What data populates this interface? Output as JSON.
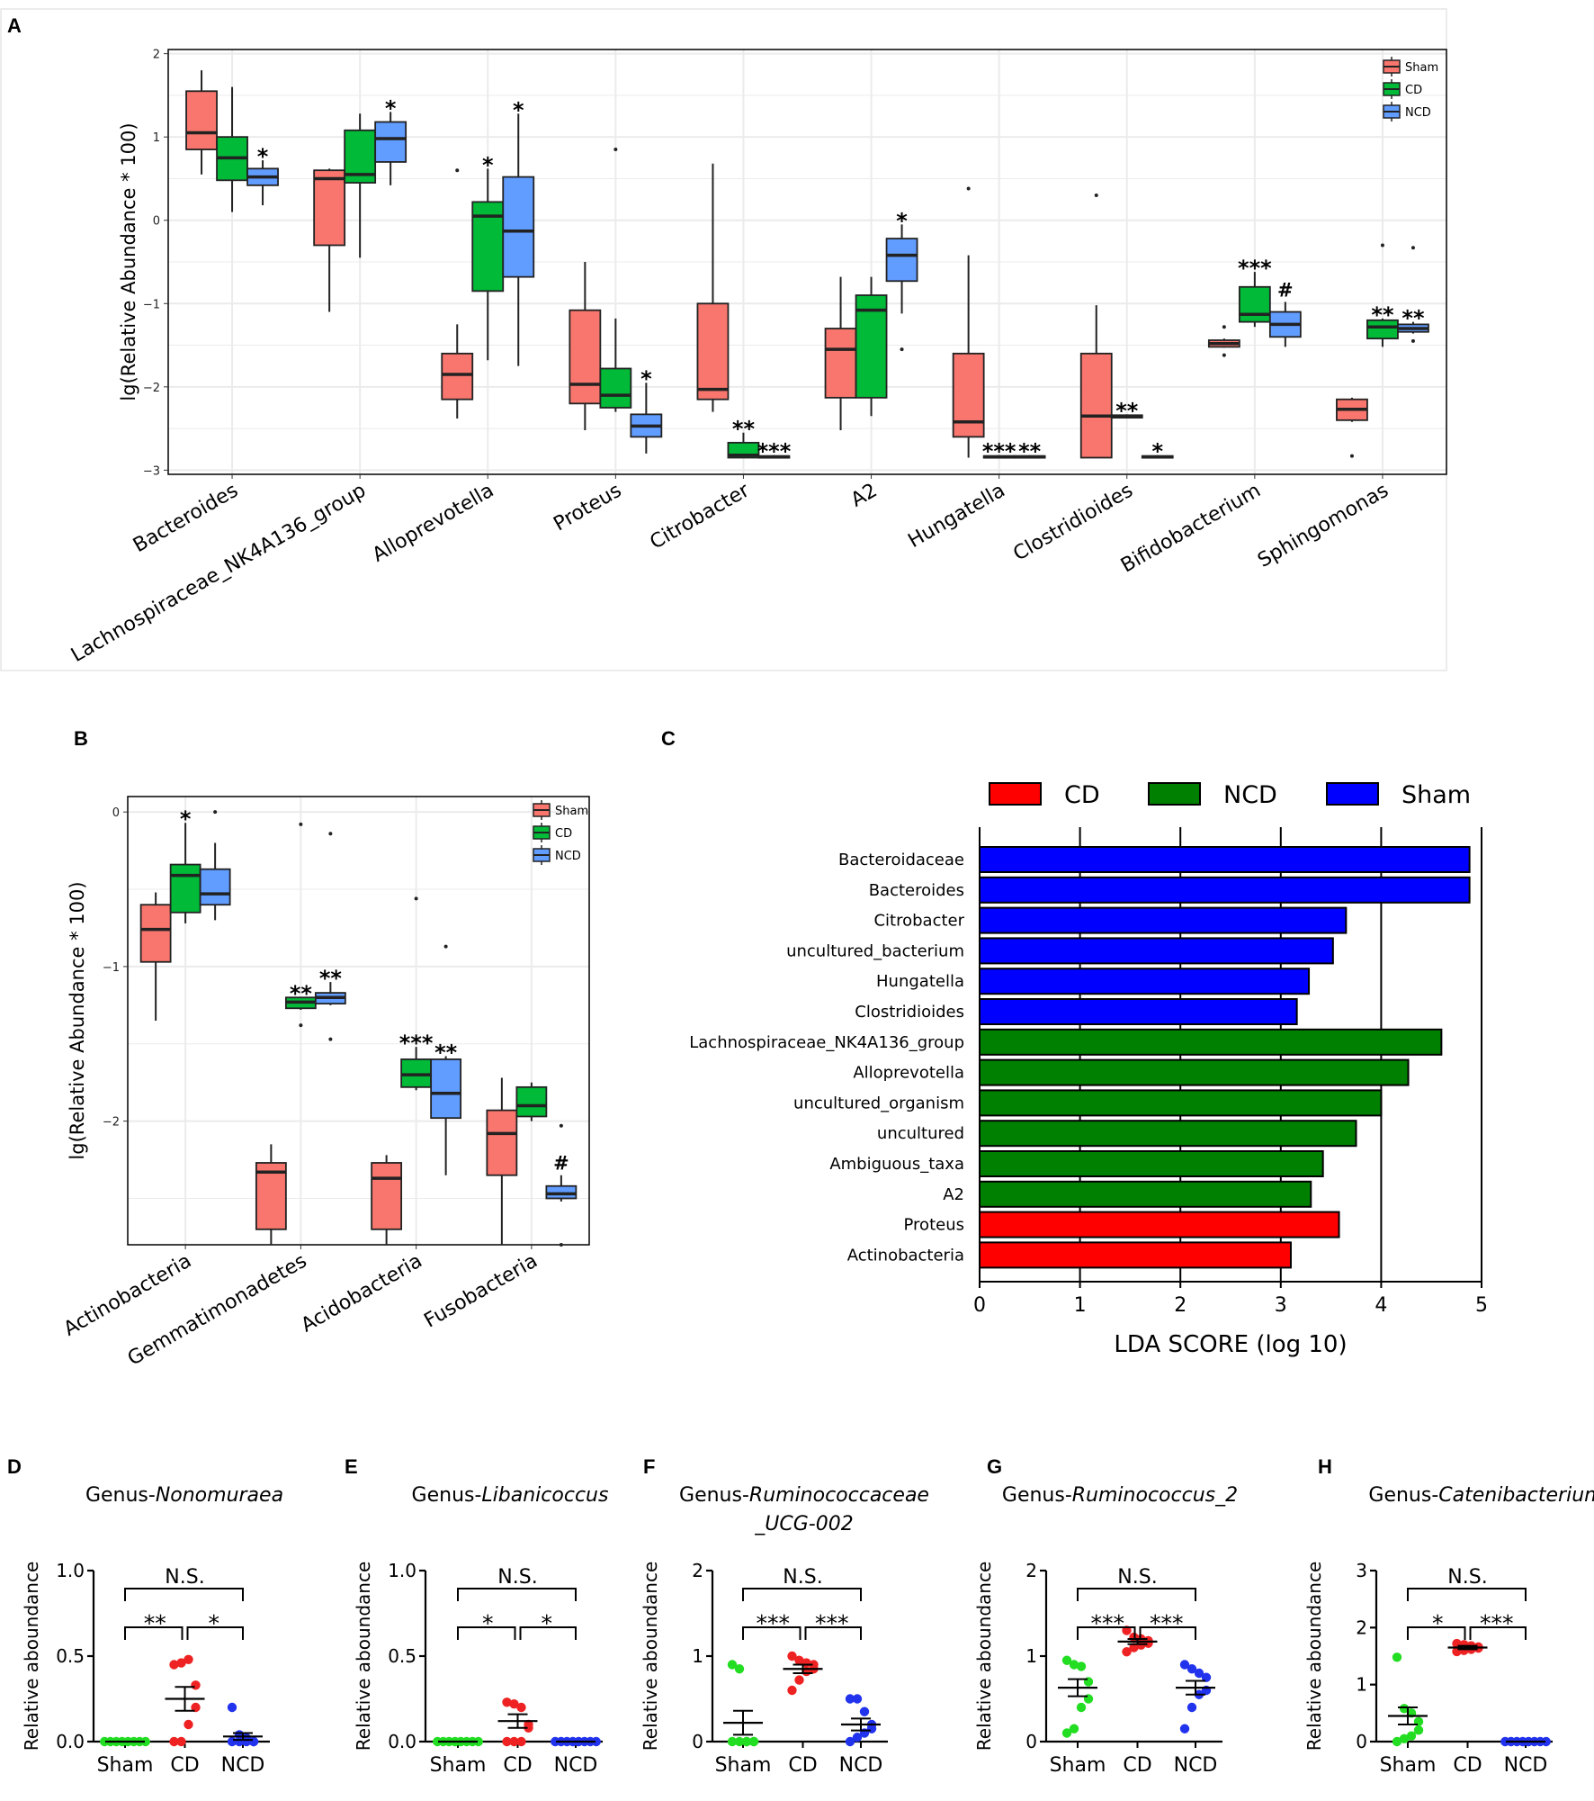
{
  "panels": {
    "A": {
      "label": "A"
    },
    "B": {
      "label": "B"
    },
    "C": {
      "label": "C"
    },
    "D": {
      "label": "D",
      "title_prefix": "Genus-",
      "title_italic": "Nonomuraea"
    },
    "E": {
      "label": "E",
      "title_prefix": "Genus-",
      "title_italic": "Libanicoccus"
    },
    "F": {
      "label": "F",
      "title_prefix": "Genus-",
      "title_italic": "Ruminococcaceae",
      "title_line2": "_UCG-002"
    },
    "G": {
      "label": "G",
      "title_prefix": "Genus-",
      "title_italic": "Ruminococcus_2"
    },
    "H": {
      "label": "H",
      "title_prefix": "Genus-",
      "title_italic": "Catenibacterium"
    }
  },
  "colors": {
    "sham": "#F8766D",
    "cd": "#00BA38",
    "ncd": "#619CFF",
    "lda_cd": "#FF0000",
    "lda_ncd": "#008000",
    "lda_sham": "#0000FF",
    "dot_sham": "#22DD22",
    "dot_cd": "#EE2222",
    "dot_ncd": "#2233EE"
  },
  "chart_data": [
    {
      "id": "A",
      "type": "boxplot",
      "ylabel": "lg(Relative Abundance * 100)",
      "ylim": [
        -3.05,
        2.05
      ],
      "yticks": [
        "2",
        "1",
        "0",
        "−1",
        "−2",
        "−3"
      ],
      "legend": [
        "Sham",
        "CD",
        "NCD"
      ],
      "groups": [
        {
          "name": "Bacteroides",
          "boxes": [
            {
              "q1": 0.85,
              "med": 1.05,
              "q3": 1.55,
              "lo": 0.55,
              "hi": 1.8,
              "out": []
            },
            {
              "q1": 0.48,
              "med": 0.75,
              "q3": 1.0,
              "lo": 0.1,
              "hi": 1.6,
              "out": []
            },
            {
              "q1": 0.42,
              "med": 0.52,
              "q3": 0.62,
              "lo": 0.18,
              "hi": 0.72,
              "out": []
            }
          ],
          "sig": [
            "",
            "",
            "*"
          ]
        },
        {
          "name": "Lachnospiraceae_NK4A136_group",
          "boxes": [
            {
              "q1": -0.3,
              "med": 0.5,
              "q3": 0.6,
              "lo": -1.1,
              "hi": 0.62,
              "out": []
            },
            {
              "q1": 0.45,
              "med": 0.55,
              "q3": 1.08,
              "lo": -0.45,
              "hi": 1.28,
              "out": []
            },
            {
              "q1": 0.7,
              "med": 0.98,
              "q3": 1.18,
              "lo": 0.42,
              "hi": 1.3,
              "out": []
            }
          ],
          "sig": [
            "",
            "",
            "*"
          ]
        },
        {
          "name": "Alloprevotella",
          "boxes": [
            {
              "q1": -2.15,
              "med": -1.85,
              "q3": -1.6,
              "lo": -2.38,
              "hi": -1.25,
              "out": [
                0.6
              ]
            },
            {
              "q1": -0.85,
              "med": 0.05,
              "q3": 0.22,
              "lo": -1.68,
              "hi": 0.62,
              "out": []
            },
            {
              "q1": -0.68,
              "med": -0.13,
              "q3": 0.52,
              "lo": -1.75,
              "hi": 1.28,
              "out": []
            }
          ],
          "sig": [
            "",
            "*",
            "*"
          ]
        },
        {
          "name": "Proteus",
          "boxes": [
            {
              "q1": -2.2,
              "med": -1.97,
              "q3": -1.08,
              "lo": -2.52,
              "hi": -0.5,
              "out": []
            },
            {
              "q1": -2.25,
              "med": -2.1,
              "q3": -1.78,
              "lo": -2.3,
              "hi": -1.18,
              "out": [
                0.85
              ]
            },
            {
              "q1": -2.6,
              "med": -2.47,
              "q3": -2.33,
              "lo": -2.8,
              "hi": -1.95,
              "out": []
            }
          ],
          "sig": [
            "",
            "",
            "*"
          ]
        },
        {
          "name": "Citrobacter",
          "boxes": [
            {
              "q1": -2.15,
              "med": -2.03,
              "q3": -1.0,
              "lo": -2.3,
              "hi": 0.68,
              "out": []
            },
            {
              "q1": -2.85,
              "med": -2.82,
              "q3": -2.67,
              "lo": -2.85,
              "hi": -2.55,
              "out": []
            },
            {
              "q1": -2.85,
              "med": -2.84,
              "q3": -2.83,
              "lo": -2.85,
              "hi": -2.82,
              "out": []
            }
          ],
          "sig": [
            "",
            "**",
            "***"
          ]
        },
        {
          "name": "A2",
          "boxes": [
            {
              "q1": -2.13,
              "med": -1.55,
              "q3": -1.3,
              "lo": -2.52,
              "hi": -0.68,
              "out": []
            },
            {
              "q1": -2.13,
              "med": -1.08,
              "q3": -0.9,
              "lo": -2.35,
              "hi": -0.68,
              "out": []
            },
            {
              "q1": -0.73,
              "med": -0.42,
              "q3": -0.22,
              "lo": -1.12,
              "hi": -0.05,
              "out": [
                -1.55
              ]
            }
          ],
          "sig": [
            "",
            "",
            "*"
          ]
        },
        {
          "name": "Hungatella",
          "boxes": [
            {
              "q1": -2.6,
              "med": -2.42,
              "q3": -1.6,
              "lo": -2.85,
              "hi": -0.42,
              "out": [
                0.38
              ]
            },
            {
              "q1": -2.85,
              "med": -2.84,
              "q3": -2.83,
              "lo": -2.85,
              "hi": -2.82,
              "out": []
            },
            {
              "q1": -2.85,
              "med": -2.84,
              "q3": -2.83,
              "lo": -2.85,
              "hi": -2.82,
              "out": []
            }
          ],
          "sig": [
            "",
            "***",
            "**"
          ]
        },
        {
          "name": "Clostridioides",
          "boxes": [
            {
              "q1": -2.85,
              "med": -2.35,
              "q3": -1.6,
              "lo": -2.85,
              "hi": -1.02,
              "out": [
                0.3
              ]
            },
            {
              "q1": -2.37,
              "med": -2.36,
              "q3": -2.34,
              "lo": -2.37,
              "hi": -2.33,
              "out": []
            },
            {
              "q1": -2.85,
              "med": -2.84,
              "q3": -2.83,
              "lo": -2.85,
              "hi": -2.82,
              "out": []
            }
          ],
          "sig": [
            "",
            "**",
            "*"
          ]
        },
        {
          "name": "Bifidobacterium",
          "boxes": [
            {
              "q1": -1.52,
              "med": -1.48,
              "q3": -1.44,
              "lo": -1.53,
              "hi": -1.42,
              "out": [
                -1.28,
                -1.62
              ]
            },
            {
              "q1": -1.22,
              "med": -1.13,
              "q3": -0.8,
              "lo": -1.28,
              "hi": -0.62,
              "out": []
            },
            {
              "q1": -1.4,
              "med": -1.25,
              "q3": -1.1,
              "lo": -1.52,
              "hi": -0.98,
              "out": []
            }
          ],
          "sig": [
            "",
            "***",
            "#"
          ]
        },
        {
          "name": "Sphingomonas",
          "boxes": [
            {
              "q1": -2.4,
              "med": -2.27,
              "q3": -2.15,
              "lo": -2.42,
              "hi": -2.13,
              "out": [
                -2.83
              ]
            },
            {
              "q1": -1.42,
              "med": -1.28,
              "q3": -1.2,
              "lo": -1.52,
              "hi": -1.18,
              "out": [
                -0.3
              ]
            },
            {
              "q1": -1.34,
              "med": -1.3,
              "q3": -1.25,
              "lo": -1.36,
              "hi": -1.22,
              "out": [
                -0.33,
                -1.45
              ]
            }
          ],
          "sig": [
            "",
            "**",
            "**"
          ]
        }
      ]
    },
    {
      "id": "B",
      "type": "boxplot",
      "ylabel": "lg(Relative Abundance * 100)",
      "ylim": [
        -2.8,
        0.1
      ],
      "yticks": [
        "0",
        "−1",
        "−2"
      ],
      "legend": [
        "Sham",
        "CD",
        "NCD"
      ],
      "groups": [
        {
          "name": "Actinobacteria",
          "boxes": [
            {
              "q1": -0.97,
              "med": -0.76,
              "q3": -0.6,
              "lo": -1.35,
              "hi": -0.52,
              "out": []
            },
            {
              "q1": -0.65,
              "med": -0.41,
              "q3": -0.34,
              "lo": -0.72,
              "hi": -0.07,
              "out": []
            },
            {
              "q1": -0.6,
              "med": -0.53,
              "q3": -0.37,
              "lo": -0.7,
              "hi": -0.2,
              "out": [
                0.0
              ]
            }
          ],
          "sig": [
            "",
            "*",
            ""
          ]
        },
        {
          "name": "Gemmatimonadetes",
          "boxes": [
            {
              "q1": -2.7,
              "med": -2.33,
              "q3": -2.27,
              "lo": -2.8,
              "hi": -2.15,
              "out": []
            },
            {
              "q1": -1.27,
              "med": -1.23,
              "q3": -1.2,
              "lo": -1.28,
              "hi": -1.2,
              "out": [
                -0.08,
                -1.38
              ]
            },
            {
              "q1": -1.24,
              "med": -1.2,
              "q3": -1.17,
              "lo": -1.25,
              "hi": -1.1,
              "out": [
                -0.14,
                -1.47
              ]
            }
          ],
          "sig": [
            "",
            "**",
            "**"
          ]
        },
        {
          "name": "Acidobacteria",
          "boxes": [
            {
              "q1": -2.7,
              "med": -2.37,
              "q3": -2.27,
              "lo": -2.8,
              "hi": -2.22,
              "out": []
            },
            {
              "q1": -1.78,
              "med": -1.7,
              "q3": -1.6,
              "lo": -1.8,
              "hi": -1.52,
              "out": [
                -0.56
              ]
            },
            {
              "q1": -1.98,
              "med": -1.82,
              "q3": -1.6,
              "lo": -2.35,
              "hi": -1.58,
              "out": [
                -0.87
              ]
            }
          ],
          "sig": [
            "",
            "***",
            "**"
          ]
        },
        {
          "name": "Fusobacteria",
          "boxes": [
            {
              "q1": -2.35,
              "med": -2.08,
              "q3": -1.93,
              "lo": -2.8,
              "hi": -1.72,
              "out": []
            },
            {
              "q1": -1.97,
              "med": -1.9,
              "q3": -1.78,
              "lo": -2.0,
              "hi": -1.75,
              "out": []
            },
            {
              "q1": -2.5,
              "med": -2.47,
              "q3": -2.42,
              "lo": -2.52,
              "hi": -2.35,
              "out": [
                -2.03,
                -2.8
              ]
            }
          ],
          "sig": [
            "",
            "",
            "#"
          ]
        }
      ]
    },
    {
      "id": "C",
      "type": "bar",
      "orientation": "horizontal",
      "xlabel": "LDA SCORE (log 10)",
      "xlim": [
        0,
        5
      ],
      "xticks": [
        "0",
        "1",
        "2",
        "3",
        "4",
        "5"
      ],
      "legend": [
        "CD",
        "NCD",
        "Sham"
      ],
      "bars": [
        {
          "name": "Bacteroidaceae",
          "value": 4.88,
          "group": "Sham"
        },
        {
          "name": "Bacteroides",
          "value": 4.88,
          "group": "Sham"
        },
        {
          "name": "Citrobacter",
          "value": 3.65,
          "group": "Sham"
        },
        {
          "name": "uncultured_bacterium",
          "value": 3.52,
          "group": "Sham"
        },
        {
          "name": "Hungatella",
          "value": 3.28,
          "group": "Sham"
        },
        {
          "name": "Clostridioides",
          "value": 3.16,
          "group": "Sham"
        },
        {
          "name": "Lachnospiraceae_NK4A136_group",
          "value": 4.6,
          "group": "NCD"
        },
        {
          "name": "Alloprevotella",
          "value": 4.27,
          "group": "NCD"
        },
        {
          "name": "uncultured_organism",
          "value": 4.0,
          "group": "NCD"
        },
        {
          "name": "uncultured",
          "value": 3.75,
          "group": "NCD"
        },
        {
          "name": "Ambiguous_taxa",
          "value": 3.42,
          "group": "NCD"
        },
        {
          "name": "A2",
          "value": 3.3,
          "group": "NCD"
        },
        {
          "name": "Proteus",
          "value": 3.58,
          "group": "CD"
        },
        {
          "name": "Actinobacteria",
          "value": 3.1,
          "group": "CD"
        }
      ]
    },
    {
      "id": "D",
      "type": "scatter",
      "ylabel": "Relative aboundance",
      "ylim": [
        0,
        1.0
      ],
      "yticks": [
        {
          "v": 0,
          "t": "0.0"
        },
        {
          "v": 0.5,
          "t": "0.5"
        },
        {
          "v": 1.0,
          "t": "1.0"
        }
      ],
      "categories": [
        "Sham",
        "CD",
        "NCD"
      ],
      "points": [
        [
          0,
          0,
          0,
          0,
          0,
          0,
          0,
          0
        ],
        [
          0.45,
          0.46,
          0.48,
          0.33,
          0.2,
          0.1,
          0.0,
          0.0
        ],
        [
          0.2,
          0.04,
          0.02,
          0.0,
          0.0,
          0.0,
          0.0,
          0.0
        ]
      ],
      "means": [
        0.0,
        0.25,
        0.03
      ],
      "sems": [
        0.0,
        0.07,
        0.02
      ],
      "sig": {
        "left": "**",
        "right": "*",
        "top": "N.S."
      }
    },
    {
      "id": "E",
      "type": "scatter",
      "ylabel": "Relative aboundance",
      "ylim": [
        0,
        1.0
      ],
      "yticks": [
        {
          "v": 0,
          "t": "0.0"
        },
        {
          "v": 0.5,
          "t": "0.5"
        },
        {
          "v": 1.0,
          "t": "1.0"
        }
      ],
      "categories": [
        "Sham",
        "CD",
        "NCD"
      ],
      "points": [
        [
          0,
          0,
          0,
          0,
          0,
          0,
          0,
          0
        ],
        [
          0.23,
          0.22,
          0.2,
          0.1,
          0.08,
          0.0,
          0.0,
          0.0
        ],
        [
          0,
          0,
          0,
          0,
          0,
          0,
          0,
          0
        ]
      ],
      "means": [
        0.0,
        0.12,
        0.0
      ],
      "sems": [
        0.0,
        0.04,
        0.0
      ],
      "sig": {
        "left": "*",
        "right": "*",
        "top": "N.S."
      }
    },
    {
      "id": "F",
      "type": "scatter",
      "ylabel": "Relative aboundance",
      "ylim": [
        0,
        2
      ],
      "yticks": [
        {
          "v": 0,
          "t": "0"
        },
        {
          "v": 1,
          "t": "1"
        },
        {
          "v": 2,
          "t": "2"
        }
      ],
      "categories": [
        "Sham",
        "CD",
        "NCD"
      ],
      "points": [
        [
          0.9,
          0.85,
          0.0,
          0.0,
          0.0,
          0.0,
          0.0,
          0.0
        ],
        [
          1.0,
          0.95,
          0.92,
          0.9,
          0.85,
          0.82,
          0.72,
          0.6
        ],
        [
          0.5,
          0.5,
          0.35,
          0.2,
          0.15,
          0.1,
          0.05,
          0.0
        ]
      ],
      "means": [
        0.22,
        0.85,
        0.2
      ],
      "sems": [
        0.14,
        0.05,
        0.07
      ],
      "sig": {
        "left": "***",
        "right": "***",
        "top": "N.S."
      }
    },
    {
      "id": "G",
      "type": "scatter",
      "ylabel": "Relative aboundance",
      "ylim": [
        0,
        2
      ],
      "yticks": [
        {
          "v": 0,
          "t": "0"
        },
        {
          "v": 1,
          "t": "1"
        },
        {
          "v": 2,
          "t": "2"
        }
      ],
      "categories": [
        "Sham",
        "CD",
        "NCD"
      ],
      "points": [
        [
          0.95,
          0.9,
          0.88,
          0.7,
          0.5,
          0.4,
          0.15,
          0.1
        ],
        [
          1.3,
          1.22,
          1.2,
          1.18,
          1.15,
          1.13,
          1.1,
          1.05
        ],
        [
          0.9,
          0.85,
          0.8,
          0.75,
          0.6,
          0.55,
          0.4,
          0.15
        ]
      ],
      "means": [
        0.63,
        1.17,
        0.63
      ],
      "sems": [
        0.1,
        0.03,
        0.08
      ],
      "sig": {
        "left": "***",
        "right": "***",
        "top": "N.S."
      }
    },
    {
      "id": "H",
      "type": "scatter",
      "ylabel": "Relative aboundance",
      "ylim": [
        0,
        3
      ],
      "yticks": [
        {
          "v": 0,
          "t": "0"
        },
        {
          "v": 1,
          "t": "1"
        },
        {
          "v": 2,
          "t": "2"
        },
        {
          "v": 3,
          "t": "3"
        }
      ],
      "categories": [
        "Sham",
        "CD",
        "NCD"
      ],
      "points": [
        [
          1.48,
          0.58,
          0.5,
          0.35,
          0.2,
          0.1,
          0.05,
          0.0
        ],
        [
          1.72,
          1.7,
          1.68,
          1.66,
          1.64,
          1.62,
          1.6,
          1.58
        ],
        [
          0,
          0,
          0,
          0,
          0,
          0,
          0,
          0
        ]
      ],
      "means": [
        0.45,
        1.65,
        0.0
      ],
      "sems": [
        0.15,
        0.03,
        0.0
      ],
      "sig": {
        "left": "*",
        "right": "***",
        "top": "N.S."
      }
    }
  ]
}
